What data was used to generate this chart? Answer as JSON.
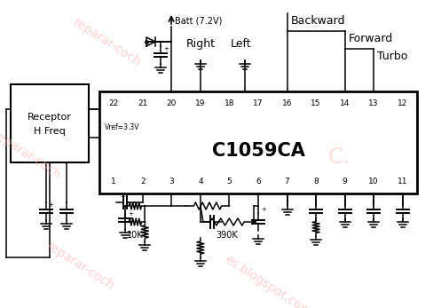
{
  "title": "C1059CA",
  "top_pins": [
    22,
    21,
    20,
    19,
    18,
    17,
    16,
    15,
    14,
    13,
    12
  ],
  "bot_pins": [
    1,
    2,
    3,
    4,
    5,
    6,
    7,
    8,
    9,
    10,
    11
  ],
  "vref_label": "Vref=3.3V",
  "batt_label": "Batt (7.2V)",
  "receptor_label": [
    "Receptor",
    "H Freq"
  ],
  "right_label": "Right",
  "left_label": "Left",
  "backward_label": "Backward",
  "forward_label": "Forward",
  "turbo_label": "Turbo",
  "resistor_labels": [
    "10K",
    "390K"
  ],
  "line_color": "#000000",
  "watermark_color": "#ffaaaa",
  "bg_color": "#ffffff",
  "fig_width": 4.97,
  "fig_height": 3.47
}
